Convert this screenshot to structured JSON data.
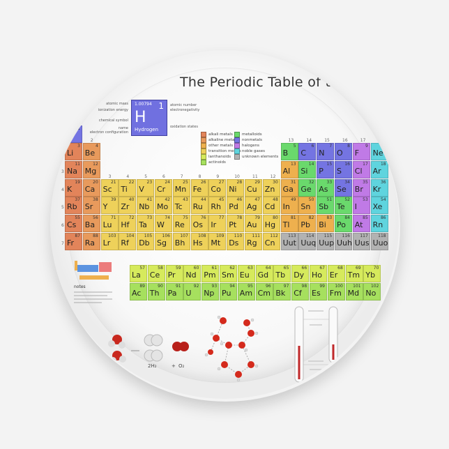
{
  "title": "The Periodic Table of the",
  "colors": {
    "alkali": "#e2845a",
    "alkaline": "#e89a5c",
    "other": "#eeb04e",
    "transition": "#eed15a",
    "lanthanoid": "#d6ea5c",
    "actinoid": "#a6e05e",
    "metalloid": "#6ad96c",
    "nonmetal": "#7474e2",
    "halogen": "#c07ae6",
    "noble": "#5fd4de",
    "unknown": "#b2b2b2",
    "plate": "#fafafa"
  },
  "key": {
    "mass": "1.00794",
    "number": "1",
    "symbol": "H",
    "name": "Hydrogen",
    "labels_left": [
      "atomic mass",
      "ionization energy",
      "chemical symbol",
      "name",
      "electron configuration"
    ],
    "labels_right": [
      "atomic number",
      "electronegativity",
      "oxidation states"
    ]
  },
  "legend": [
    {
      "label": "alkali metals",
      "cat": "alkali"
    },
    {
      "label": "alkaline metals",
      "cat": "alkaline"
    },
    {
      "label": "other metals",
      "cat": "other"
    },
    {
      "label": "transition metals",
      "cat": "transition"
    },
    {
      "label": "lanthanoids",
      "cat": "lanthanoid"
    },
    {
      "label": "actinoids",
      "cat": "actinoid"
    },
    {
      "label": "metalloids",
      "cat": "metalloid"
    },
    {
      "label": "nonmetals",
      "cat": "nonmetal"
    },
    {
      "label": "halogens",
      "cat": "halogen"
    },
    {
      "label": "noble gases",
      "cat": "noble"
    },
    {
      "label": "unknown elements",
      "cat": "unknown"
    }
  ],
  "group_labels": [
    "2",
    "3",
    "4",
    "5",
    "6",
    "7",
    "8",
    "9",
    "10",
    "11",
    "12",
    "13",
    "14",
    "15",
    "16",
    "17"
  ],
  "period_labels": [
    "3",
    "4",
    "5",
    "6",
    "7"
  ],
  "elements": [
    [
      "H",
      1,
      1,
      1,
      "nonmetal"
    ],
    [
      "Li",
      3,
      2,
      1,
      "alkali"
    ],
    [
      "Be",
      4,
      2,
      2,
      "alkaline"
    ],
    [
      "B",
      5,
      2,
      13,
      "metalloid"
    ],
    [
      "C",
      6,
      2,
      14,
      "nonmetal"
    ],
    [
      "N",
      7,
      2,
      15,
      "nonmetal"
    ],
    [
      "O",
      8,
      2,
      16,
      "nonmetal"
    ],
    [
      "F",
      9,
      2,
      17,
      "halogen"
    ],
    [
      "Ne",
      10,
      2,
      18,
      "noble"
    ],
    [
      "Na",
      11,
      3,
      1,
      "alkali"
    ],
    [
      "Mg",
      12,
      3,
      2,
      "alkaline"
    ],
    [
      "Al",
      13,
      3,
      13,
      "other"
    ],
    [
      "Si",
      14,
      3,
      14,
      "metalloid"
    ],
    [
      "P",
      15,
      3,
      15,
      "nonmetal"
    ],
    [
      "S",
      16,
      3,
      16,
      "nonmetal"
    ],
    [
      "Cl",
      17,
      3,
      17,
      "halogen"
    ],
    [
      "Ar",
      18,
      3,
      18,
      "noble"
    ],
    [
      "K",
      19,
      4,
      1,
      "alkali"
    ],
    [
      "Ca",
      20,
      4,
      2,
      "alkaline"
    ],
    [
      "Sc",
      21,
      4,
      3,
      "transition"
    ],
    [
      "Ti",
      22,
      4,
      4,
      "transition"
    ],
    [
      "V",
      23,
      4,
      5,
      "transition"
    ],
    [
      "Cr",
      24,
      4,
      6,
      "transition"
    ],
    [
      "Mn",
      25,
      4,
      7,
      "transition"
    ],
    [
      "Fe",
      26,
      4,
      8,
      "transition"
    ],
    [
      "Co",
      27,
      4,
      9,
      "transition"
    ],
    [
      "Ni",
      28,
      4,
      10,
      "transition"
    ],
    [
      "Cu",
      29,
      4,
      11,
      "transition"
    ],
    [
      "Zn",
      30,
      4,
      12,
      "transition"
    ],
    [
      "Ga",
      31,
      4,
      13,
      "other"
    ],
    [
      "Ge",
      32,
      4,
      14,
      "metalloid"
    ],
    [
      "As",
      33,
      4,
      15,
      "metalloid"
    ],
    [
      "Se",
      34,
      4,
      16,
      "nonmetal"
    ],
    [
      "Br",
      35,
      4,
      17,
      "halogen"
    ],
    [
      "Kr",
      36,
      4,
      18,
      "noble"
    ],
    [
      "Rb",
      37,
      5,
      1,
      "alkali"
    ],
    [
      "Sr",
      38,
      5,
      2,
      "alkaline"
    ],
    [
      "Y",
      39,
      5,
      3,
      "transition"
    ],
    [
      "Zr",
      40,
      5,
      4,
      "transition"
    ],
    [
      "Nb",
      41,
      5,
      5,
      "transition"
    ],
    [
      "Mo",
      42,
      5,
      6,
      "transition"
    ],
    [
      "Tc",
      43,
      5,
      7,
      "transition"
    ],
    [
      "Ru",
      44,
      5,
      8,
      "transition"
    ],
    [
      "Rh",
      45,
      5,
      9,
      "transition"
    ],
    [
      "Pd",
      46,
      5,
      10,
      "transition"
    ],
    [
      "Ag",
      47,
      5,
      11,
      "transition"
    ],
    [
      "Cd",
      48,
      5,
      12,
      "transition"
    ],
    [
      "In",
      49,
      5,
      13,
      "other"
    ],
    [
      "Sn",
      50,
      5,
      14,
      "other"
    ],
    [
      "Sb",
      51,
      5,
      15,
      "metalloid"
    ],
    [
      "Te",
      52,
      5,
      16,
      "metalloid"
    ],
    [
      "I",
      53,
      5,
      17,
      "halogen"
    ],
    [
      "Xe",
      54,
      5,
      18,
      "noble"
    ],
    [
      "Cs",
      55,
      6,
      1,
      "alkali"
    ],
    [
      "Ba",
      56,
      6,
      2,
      "alkaline"
    ],
    [
      "Lu",
      71,
      6,
      3,
      "transition"
    ],
    [
      "Hf",
      72,
      6,
      4,
      "transition"
    ],
    [
      "Ta",
      73,
      6,
      5,
      "transition"
    ],
    [
      "W",
      74,
      6,
      6,
      "transition"
    ],
    [
      "Re",
      75,
      6,
      7,
      "transition"
    ],
    [
      "Os",
      76,
      6,
      8,
      "transition"
    ],
    [
      "Ir",
      77,
      6,
      9,
      "transition"
    ],
    [
      "Pt",
      78,
      6,
      10,
      "transition"
    ],
    [
      "Au",
      79,
      6,
      11,
      "transition"
    ],
    [
      "Hg",
      80,
      6,
      12,
      "transition"
    ],
    [
      "Tl",
      81,
      6,
      13,
      "other"
    ],
    [
      "Pb",
      82,
      6,
      14,
      "other"
    ],
    [
      "Bi",
      83,
      6,
      15,
      "other"
    ],
    [
      "Po",
      84,
      6,
      16,
      "metalloid"
    ],
    [
      "At",
      85,
      6,
      17,
      "halogen"
    ],
    [
      "Rn",
      86,
      6,
      18,
      "noble"
    ],
    [
      "Fr",
      87,
      7,
      1,
      "alkali"
    ],
    [
      "Ra",
      88,
      7,
      2,
      "alkaline"
    ],
    [
      "Lr",
      103,
      7,
      3,
      "transition"
    ],
    [
      "Rf",
      104,
      7,
      4,
      "transition"
    ],
    [
      "Db",
      105,
      7,
      5,
      "transition"
    ],
    [
      "Sg",
      106,
      7,
      6,
      "transition"
    ],
    [
      "Bh",
      107,
      7,
      7,
      "transition"
    ],
    [
      "Hs",
      108,
      7,
      8,
      "transition"
    ],
    [
      "Mt",
      109,
      7,
      9,
      "transition"
    ],
    [
      "Ds",
      110,
      7,
      10,
      "transition"
    ],
    [
      "Rg",
      111,
      7,
      11,
      "transition"
    ],
    [
      "Cn",
      112,
      7,
      12,
      "transition"
    ],
    [
      "Uut",
      113,
      7,
      13,
      "unknown"
    ],
    [
      "Uuq",
      114,
      7,
      14,
      "unknown"
    ],
    [
      "Uup",
      115,
      7,
      15,
      "unknown"
    ],
    [
      "Uuh",
      116,
      7,
      16,
      "unknown"
    ],
    [
      "Uus",
      117,
      7,
      17,
      "unknown"
    ],
    [
      "Uuo",
      118,
      7,
      18,
      "unknown"
    ]
  ],
  "lanthanoids": [
    [
      "La",
      57
    ],
    [
      "Ce",
      58
    ],
    [
      "Pr",
      59
    ],
    [
      "Nd",
      60
    ],
    [
      "Pm",
      61
    ],
    [
      "Sm",
      62
    ],
    [
      "Eu",
      63
    ],
    [
      "Gd",
      64
    ],
    [
      "Tb",
      65
    ],
    [
      "Dy",
      66
    ],
    [
      "Ho",
      67
    ],
    [
      "Er",
      68
    ],
    [
      "Tm",
      69
    ],
    [
      "Yb",
      70
    ]
  ],
  "actinoids": [
    [
      "Ac",
      89
    ],
    [
      "Th",
      90
    ],
    [
      "Pa",
      91
    ],
    [
      "U",
      92
    ],
    [
      "Np",
      93
    ],
    [
      "Pu",
      94
    ],
    [
      "Am",
      95
    ],
    [
      "Cm",
      96
    ],
    [
      "Bk",
      97
    ],
    [
      "Cf",
      98
    ],
    [
      "Es",
      99
    ],
    [
      "Fm",
      100
    ],
    [
      "Md",
      101
    ],
    [
      "No",
      102
    ]
  ],
  "notes_title": "notes",
  "equation": {
    "h2": "2H₂",
    "plus": "+",
    "o2": "O₂"
  }
}
